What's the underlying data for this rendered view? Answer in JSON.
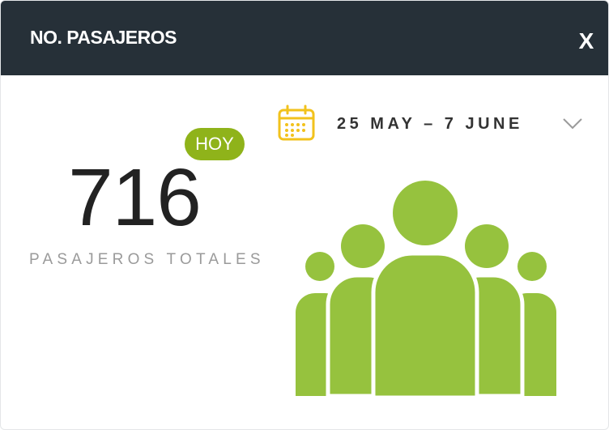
{
  "header": {
    "title": "NO. PASAJEROS",
    "close_label": "X",
    "background_color": "#263038"
  },
  "date_filter": {
    "icon": "calendar-icon",
    "range_label": "25 MAY – 7 JUNE",
    "dropdown_icon": "chevron-down-icon",
    "icon_color": "#f2c21c"
  },
  "stat": {
    "badge_label": "HOY",
    "value": "716",
    "label": "PASAJEROS TOTALES",
    "badge_color": "#8fb31a"
  },
  "illustration": {
    "icon": "people-group-icon",
    "color": "#96c23e"
  }
}
